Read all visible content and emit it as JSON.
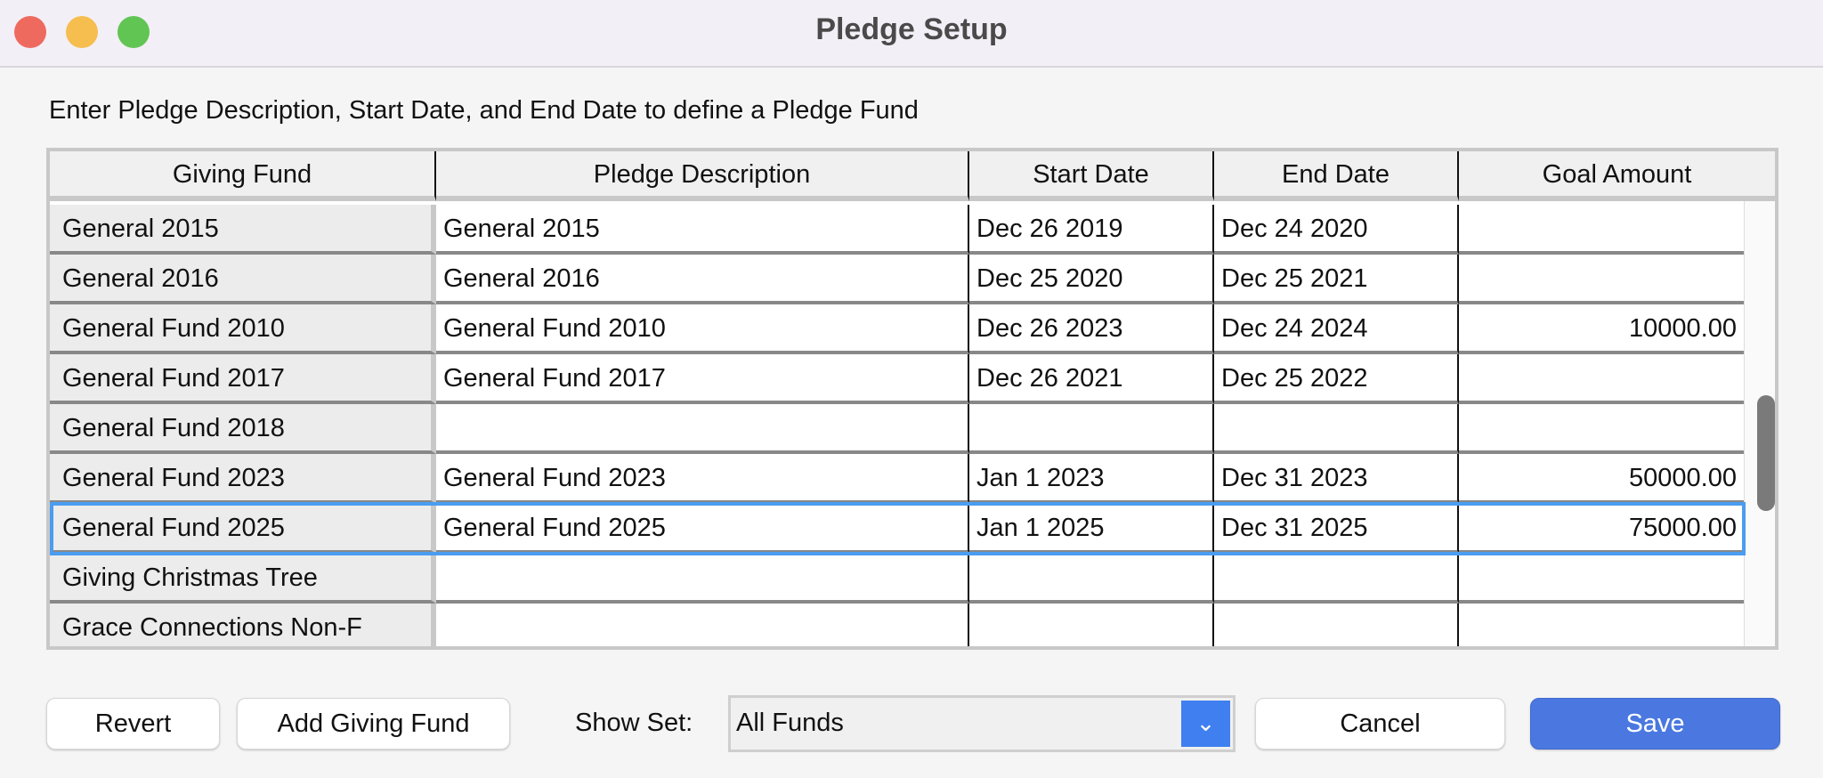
{
  "window": {
    "title": "Pledge Setup",
    "controls": {
      "close_color": "#ee6a5f",
      "minimize_color": "#f5be4f",
      "zoom_color": "#61c554"
    }
  },
  "instruction": "Enter Pledge Description, Start Date, and End Date to define a Pledge Fund",
  "table": {
    "columns": [
      "Giving Fund",
      "Pledge Description",
      "Start Date",
      "End Date",
      "Goal Amount"
    ],
    "rows": [
      {
        "fund": "General 2015",
        "desc": "General 2015",
        "start": "Dec 26 2019",
        "end": "Dec 24 2020",
        "goal": ""
      },
      {
        "fund": "General 2016",
        "desc": "General 2016",
        "start": "Dec 25 2020",
        "end": "Dec 25 2021",
        "goal": ""
      },
      {
        "fund": "General Fund 2010",
        "desc": "General Fund 2010",
        "start": "Dec 26 2023",
        "end": "Dec 24 2024",
        "goal": "10000.00"
      },
      {
        "fund": "General Fund 2017",
        "desc": "General Fund 2017",
        "start": "Dec 26 2021",
        "end": "Dec 25 2022",
        "goal": ""
      },
      {
        "fund": "General Fund 2018",
        "desc": "",
        "start": "",
        "end": "",
        "goal": ""
      },
      {
        "fund": "General Fund 2023",
        "desc": "General Fund 2023",
        "start": "Jan 1 2023",
        "end": "Dec 31 2023",
        "goal": "50000.00"
      },
      {
        "fund": "General Fund 2025",
        "desc": "General Fund 2025",
        "start": "Jan 1 2025",
        "end": "Dec 31 2025",
        "goal": "75000.00"
      },
      {
        "fund": "Giving Christmas Tree",
        "desc": "",
        "start": "",
        "end": "",
        "goal": ""
      },
      {
        "fund": "Grace Connections Non-F",
        "desc": "",
        "start": "",
        "end": "",
        "goal": ""
      }
    ],
    "selected_row": 6,
    "selection_color": "#4a9df0"
  },
  "footer": {
    "revert": "Revert",
    "add_fund": "Add Giving Fund",
    "show_set_label": "Show Set:",
    "show_set_value": "All Funds",
    "dropdown_icon": "chevron-down",
    "cancel": "Cancel",
    "save": "Save",
    "save_color": "#4a78e0"
  }
}
